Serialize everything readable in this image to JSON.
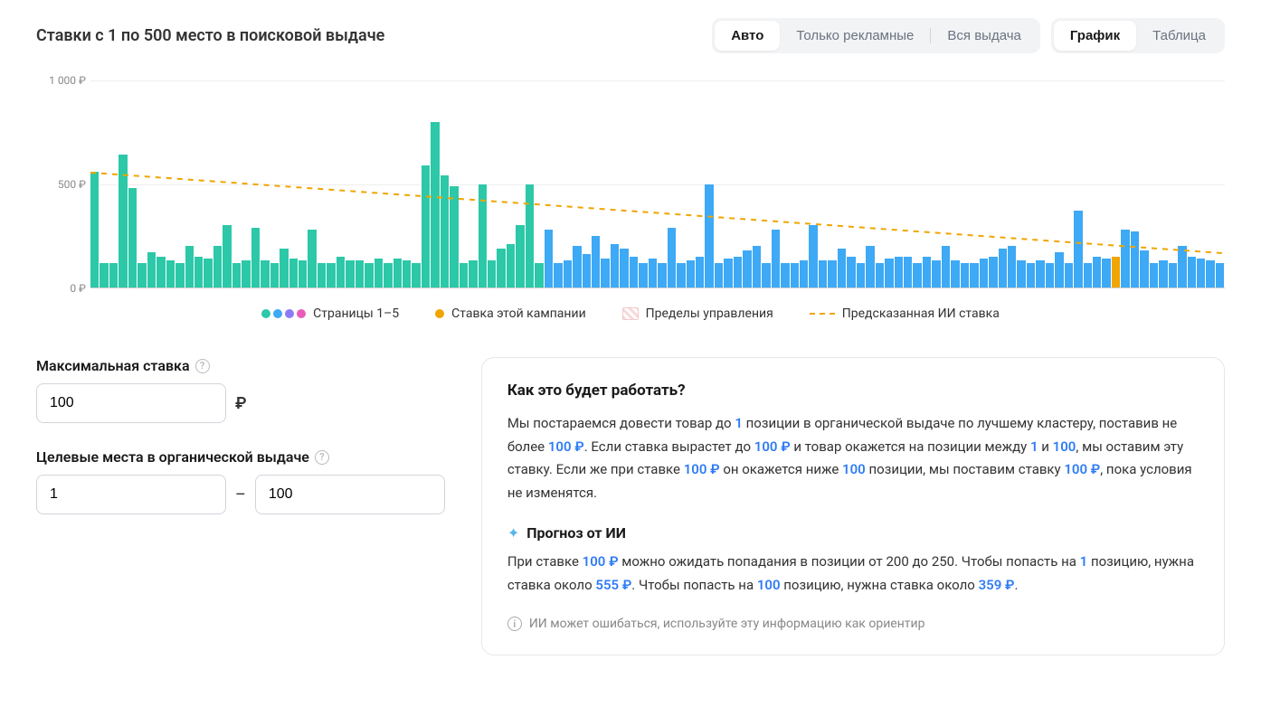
{
  "title": "Ставки с 1 по 500 место в поисковой выдаче",
  "filter_toggle": {
    "options": [
      "Авто",
      "Только рекламные",
      "Вся выдача"
    ],
    "active": 0
  },
  "view_toggle": {
    "options": [
      "График",
      "Таблица"
    ],
    "active": 0
  },
  "chart": {
    "type": "bar+line",
    "ylim": [
      0,
      1000
    ],
    "yticks": [
      0,
      500,
      1000
    ],
    "ytick_labels": [
      "0 ₽",
      "500 ₽",
      "1 000 ₽"
    ],
    "background_color": "#ffffff",
    "grid_color": "#eeeeee",
    "axis_color": "#cccccc",
    "bar_groups": [
      {
        "color": "#2cc8a8",
        "range_end": 48
      },
      {
        "color": "#3ea9f5",
        "range_end": 120
      }
    ],
    "highlight_bar": {
      "index": 108,
      "color": "#f0a500"
    },
    "bars": [
      560,
      120,
      120,
      640,
      480,
      120,
      170,
      150,
      130,
      120,
      200,
      150,
      140,
      200,
      300,
      120,
      130,
      290,
      130,
      120,
      190,
      140,
      130,
      280,
      120,
      120,
      150,
      130,
      130,
      120,
      140,
      120,
      140,
      130,
      120,
      590,
      800,
      540,
      490,
      120,
      130,
      500,
      130,
      190,
      210,
      300,
      500,
      120,
      280,
      120,
      130,
      200,
      160,
      250,
      140,
      210,
      190,
      150,
      120,
      140,
      120,
      290,
      120,
      130,
      150,
      500,
      120,
      140,
      150,
      180,
      200,
      120,
      280,
      120,
      120,
      130,
      300,
      130,
      130,
      190,
      150,
      120,
      200,
      120,
      140,
      150,
      150,
      120,
      150,
      130,
      200,
      130,
      120,
      120,
      140,
      150,
      190,
      200,
      130,
      120,
      130,
      120,
      170,
      120,
      370,
      120,
      150,
      140,
      150,
      280,
      270,
      180,
      120,
      130,
      120,
      200,
      150,
      140,
      130,
      120
    ],
    "trend_line": {
      "start_y": 555,
      "end_y": 165,
      "color": "#f0a500",
      "dash": "6,6",
      "width": 2
    },
    "legend": {
      "pages": {
        "label": "Страницы 1–5",
        "colors": [
          "#2cc8a8",
          "#3ea9f5",
          "#8b7cf6",
          "#e85db9"
        ]
      },
      "campaign": {
        "label": "Ставка этой кампании",
        "color": "#f0a500"
      },
      "bounds": {
        "label": "Пределы управления"
      },
      "predicted": {
        "label": "Предсказанная ИИ ставка",
        "color": "#f0a500"
      }
    }
  },
  "max_bid": {
    "label": "Максимальная ставка",
    "value": "100",
    "currency": "₽"
  },
  "target_places": {
    "label": "Целевые места в органической выдаче",
    "from": "1",
    "to": "100"
  },
  "info": {
    "title": "Как это будет работать?",
    "body_parts": [
      "Мы постараемся довести товар до ",
      {
        "hl": "1"
      },
      " позиции в органической выдаче по лучшему кластеру, поставив не более ",
      {
        "hl": "100 ₽"
      },
      ". Если ставка вырастет до ",
      {
        "hl": "100 ₽"
      },
      " и товар окажется на позиции между ",
      {
        "hl": "1"
      },
      " и ",
      {
        "hl": "100"
      },
      ", мы оставим эту ставку. Если же при ставке ",
      {
        "hl": "100 ₽"
      },
      " он окажется ниже ",
      {
        "hl": "100"
      },
      " позиции, мы поставим ставку ",
      {
        "hl": "100 ₽"
      },
      ", пока условия не изменятся."
    ],
    "ai_title": "Прогноз от ИИ",
    "ai_parts": [
      "При ставке ",
      {
        "hl": "100 ₽"
      },
      " можно ожидать попадания в позиции от 200 до 250. Чтобы попасть на ",
      {
        "hl": "1"
      },
      " позицию, нужна ставка около ",
      {
        "hl": "555 ₽"
      },
      ". Чтобы попасть на ",
      {
        "hl": "100"
      },
      " позицию, нужна ставка около ",
      {
        "hl": "359 ₽"
      },
      "."
    ],
    "disclaimer": "ИИ может ошибаться, используйте эту информацию как ориентир"
  }
}
